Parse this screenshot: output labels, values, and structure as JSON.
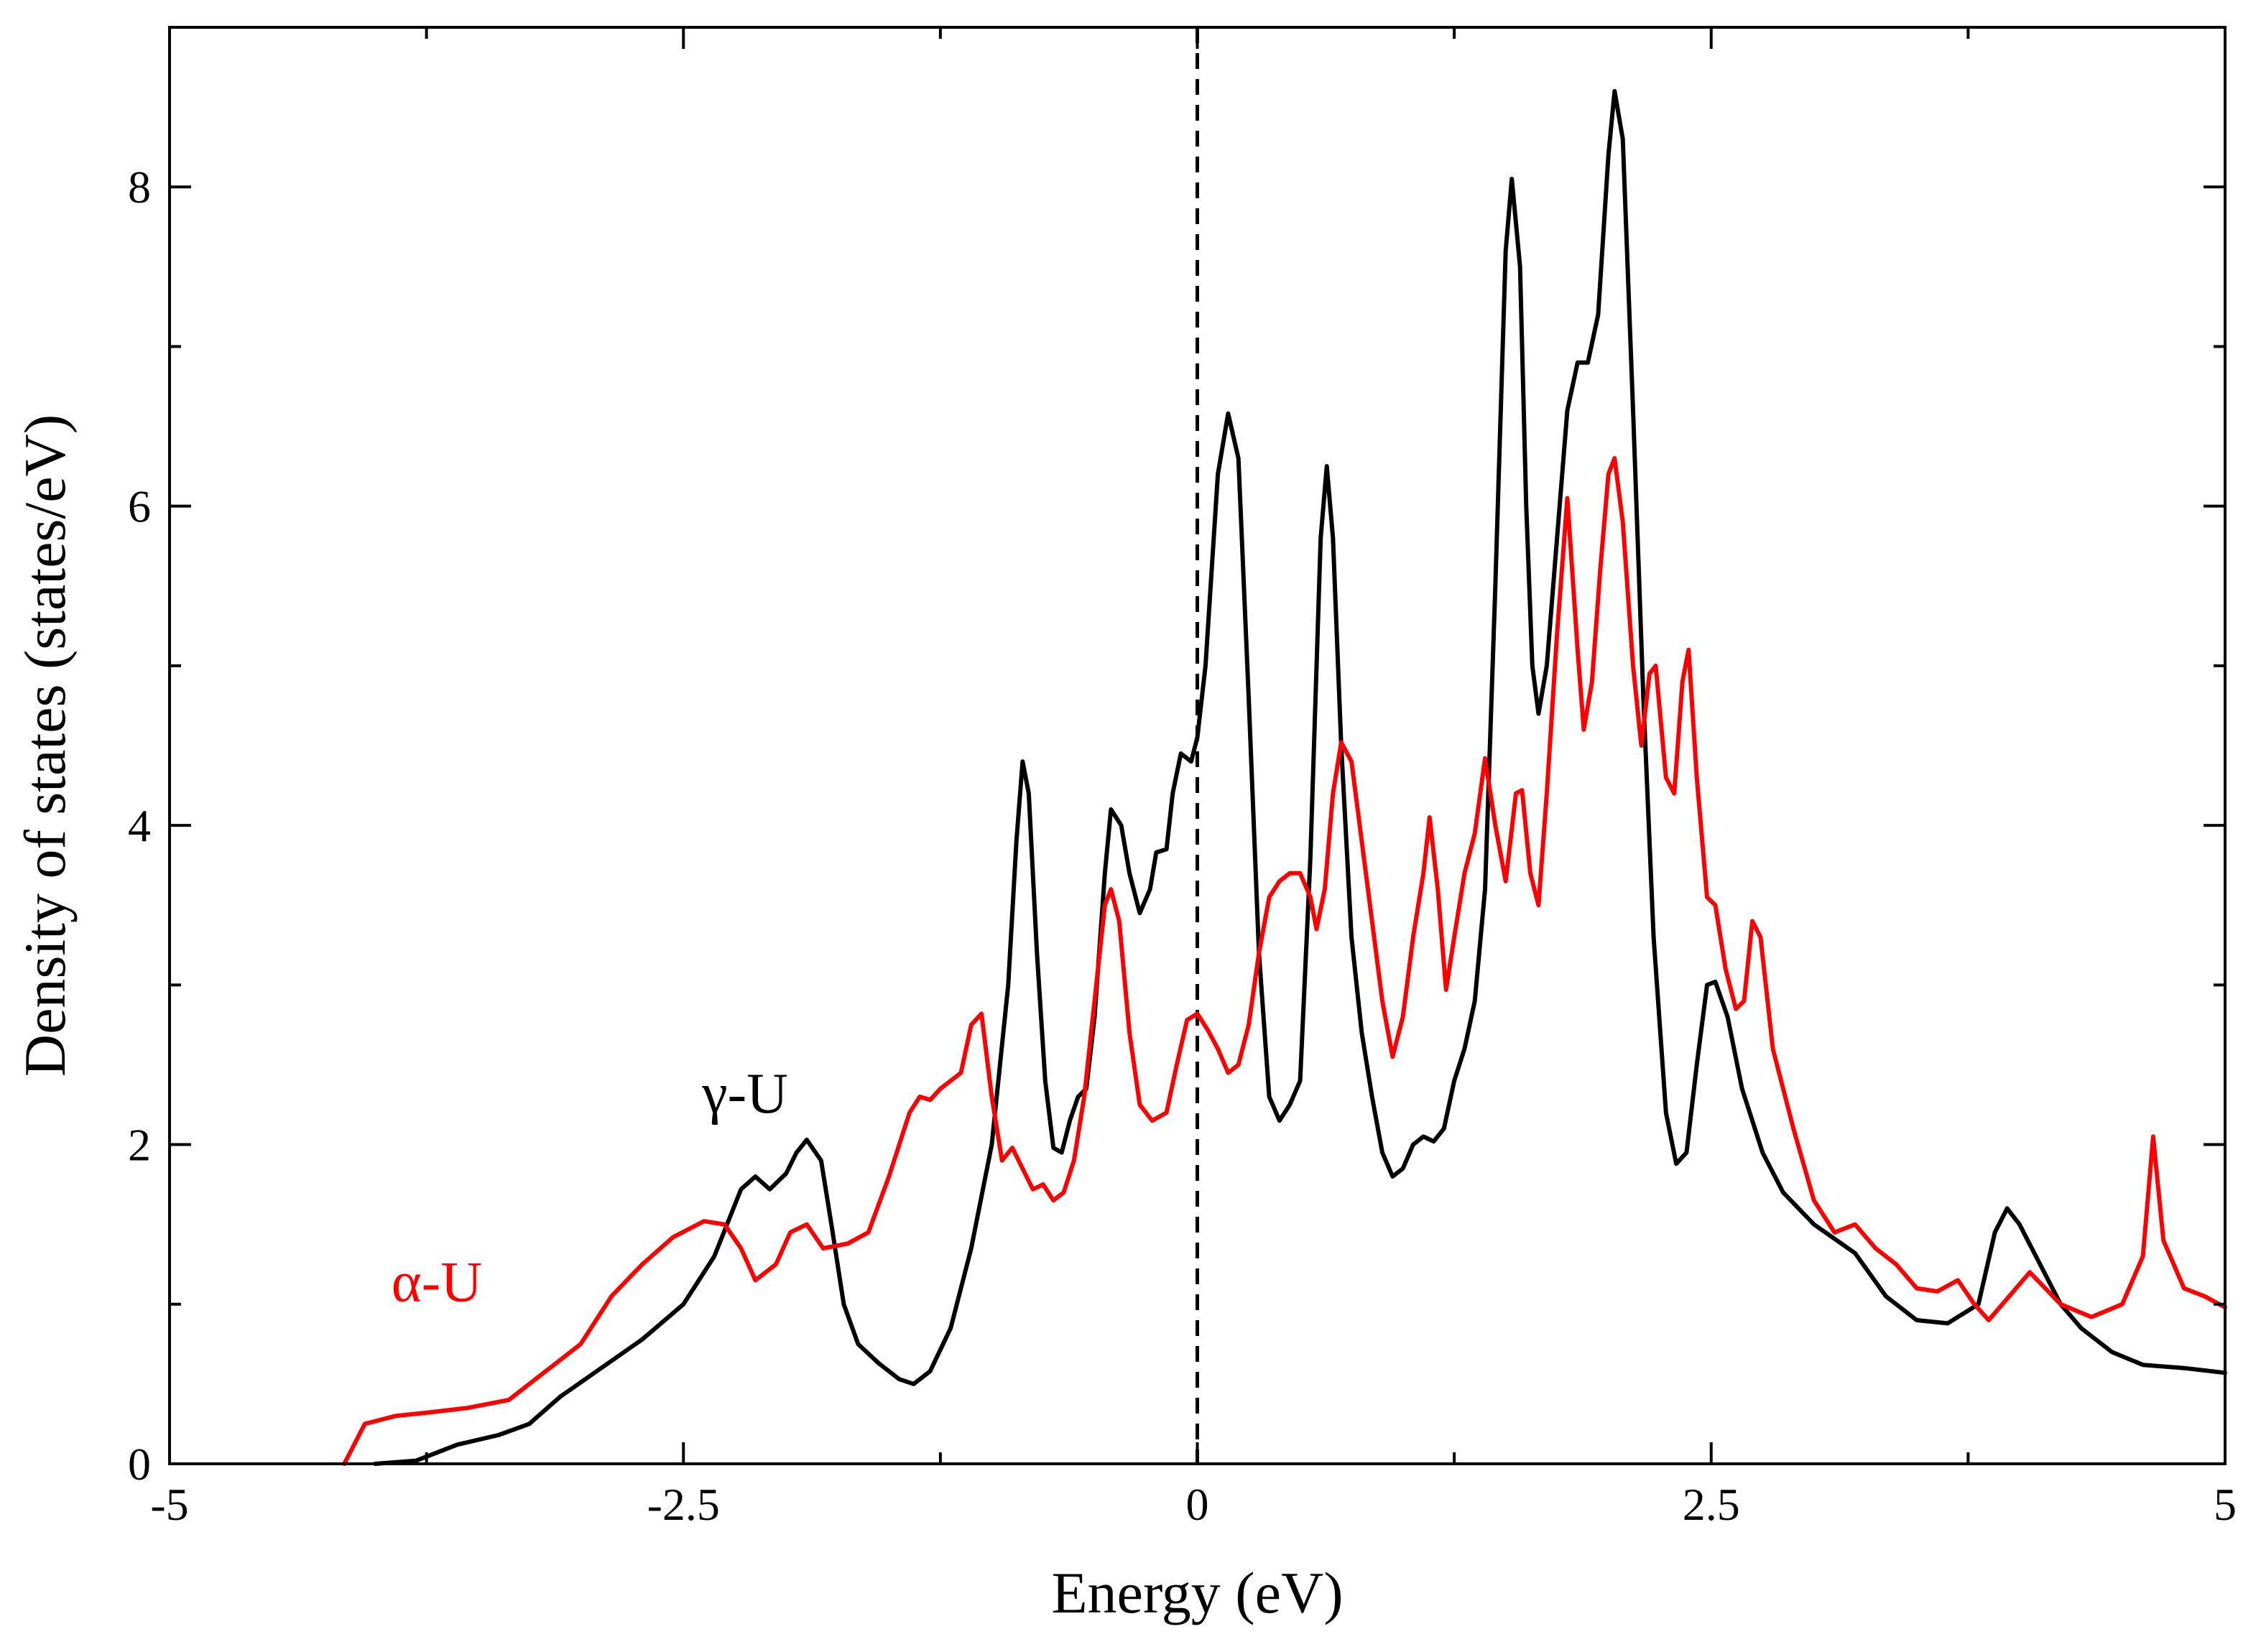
{
  "chart_data": {
    "type": "line",
    "title": "",
    "xlabel": "Energy (eV)",
    "ylabel": "Density of states (states/eV)",
    "xlim": [
      -5,
      5
    ],
    "ylim": [
      0,
      9
    ],
    "x_ticks": [
      -5,
      -2.5,
      0,
      2.5,
      5
    ],
    "x_tick_labels": [
      "-5",
      "-2.5",
      "0",
      "2.5",
      "5"
    ],
    "y_ticks": [
      0,
      2,
      4,
      6,
      8
    ],
    "y_tick_labels": [
      "0",
      "2",
      "4",
      "6",
      "8"
    ],
    "fermi_level": 0,
    "series": [
      {
        "name": "γ-U",
        "color": "#000000",
        "points": [
          [
            -4.0,
            0.0
          ],
          [
            -3.8,
            0.02
          ],
          [
            -3.6,
            0.12
          ],
          [
            -3.4,
            0.18
          ],
          [
            -3.25,
            0.25
          ],
          [
            -3.1,
            0.42
          ],
          [
            -2.9,
            0.6
          ],
          [
            -2.7,
            0.78
          ],
          [
            -2.5,
            1.0
          ],
          [
            -2.35,
            1.3
          ],
          [
            -2.22,
            1.72
          ],
          [
            -2.15,
            1.8
          ],
          [
            -2.08,
            1.72
          ],
          [
            -2.0,
            1.82
          ],
          [
            -1.95,
            1.95
          ],
          [
            -1.9,
            2.03
          ],
          [
            -1.83,
            1.9
          ],
          [
            -1.78,
            1.5
          ],
          [
            -1.72,
            1.0
          ],
          [
            -1.65,
            0.75
          ],
          [
            -1.55,
            0.63
          ],
          [
            -1.45,
            0.53
          ],
          [
            -1.38,
            0.5
          ],
          [
            -1.3,
            0.58
          ],
          [
            -1.2,
            0.85
          ],
          [
            -1.1,
            1.35
          ],
          [
            -1.0,
            2.0
          ],
          [
            -0.92,
            3.0
          ],
          [
            -0.88,
            3.9
          ],
          [
            -0.85,
            4.4
          ],
          [
            -0.82,
            4.2
          ],
          [
            -0.78,
            3.2
          ],
          [
            -0.74,
            2.4
          ],
          [
            -0.7,
            1.98
          ],
          [
            -0.66,
            1.95
          ],
          [
            -0.62,
            2.15
          ],
          [
            -0.58,
            2.3
          ],
          [
            -0.54,
            2.35
          ],
          [
            -0.5,
            2.8
          ],
          [
            -0.45,
            3.7
          ],
          [
            -0.42,
            4.1
          ],
          [
            -0.37,
            4.0
          ],
          [
            -0.33,
            3.7
          ],
          [
            -0.28,
            3.45
          ],
          [
            -0.23,
            3.6
          ],
          [
            -0.2,
            3.83
          ],
          [
            -0.15,
            3.85
          ],
          [
            -0.12,
            4.2
          ],
          [
            -0.08,
            4.45
          ],
          [
            -0.03,
            4.4
          ],
          [
            0.0,
            4.55
          ],
          [
            0.04,
            5.0
          ],
          [
            0.1,
            6.2
          ],
          [
            0.15,
            6.58
          ],
          [
            0.2,
            6.3
          ],
          [
            0.25,
            4.8
          ],
          [
            0.3,
            3.2
          ],
          [
            0.35,
            2.3
          ],
          [
            0.4,
            2.15
          ],
          [
            0.45,
            2.25
          ],
          [
            0.5,
            2.4
          ],
          [
            0.55,
            3.8
          ],
          [
            0.6,
            5.8
          ],
          [
            0.63,
            6.25
          ],
          [
            0.66,
            5.8
          ],
          [
            0.7,
            4.5
          ],
          [
            0.75,
            3.3
          ],
          [
            0.8,
            2.7
          ],
          [
            0.85,
            2.3
          ],
          [
            0.9,
            1.95
          ],
          [
            0.95,
            1.8
          ],
          [
            1.0,
            1.85
          ],
          [
            1.05,
            2.0
          ],
          [
            1.1,
            2.05
          ],
          [
            1.15,
            2.02
          ],
          [
            1.2,
            2.1
          ],
          [
            1.25,
            2.4
          ],
          [
            1.3,
            2.6
          ],
          [
            1.35,
            2.9
          ],
          [
            1.4,
            3.6
          ],
          [
            1.45,
            5.5
          ],
          [
            1.5,
            7.6
          ],
          [
            1.53,
            8.05
          ],
          [
            1.57,
            7.5
          ],
          [
            1.6,
            6.0
          ],
          [
            1.63,
            5.0
          ],
          [
            1.66,
            4.7
          ],
          [
            1.7,
            5.0
          ],
          [
            1.75,
            5.8
          ],
          [
            1.8,
            6.6
          ],
          [
            1.85,
            6.9
          ],
          [
            1.9,
            6.9
          ],
          [
            1.95,
            7.2
          ],
          [
            2.0,
            8.2
          ],
          [
            2.03,
            8.6
          ],
          [
            2.07,
            8.3
          ],
          [
            2.12,
            6.6
          ],
          [
            2.17,
            4.8
          ],
          [
            2.22,
            3.3
          ],
          [
            2.28,
            2.2
          ],
          [
            2.33,
            1.88
          ],
          [
            2.38,
            1.95
          ],
          [
            2.43,
            2.5
          ],
          [
            2.48,
            3.0
          ],
          [
            2.52,
            3.02
          ],
          [
            2.58,
            2.8
          ],
          [
            2.65,
            2.35
          ],
          [
            2.75,
            1.95
          ],
          [
            2.85,
            1.7
          ],
          [
            3.0,
            1.5
          ],
          [
            3.2,
            1.32
          ],
          [
            3.35,
            1.05
          ],
          [
            3.5,
            0.9
          ],
          [
            3.65,
            0.88
          ],
          [
            3.8,
            1.0
          ],
          [
            3.88,
            1.45
          ],
          [
            3.94,
            1.6
          ],
          [
            4.0,
            1.5
          ],
          [
            4.1,
            1.25
          ],
          [
            4.2,
            1.0
          ],
          [
            4.3,
            0.85
          ],
          [
            4.45,
            0.7
          ],
          [
            4.6,
            0.62
          ],
          [
            4.8,
            0.6
          ],
          [
            5.0,
            0.57
          ]
        ]
      },
      {
        "name": "α-U",
        "color": "#ff0000",
        "points": [
          [
            -4.15,
            0.0
          ],
          [
            -4.05,
            0.25
          ],
          [
            -3.9,
            0.3
          ],
          [
            -3.75,
            0.32
          ],
          [
            -3.55,
            0.35
          ],
          [
            -3.35,
            0.4
          ],
          [
            -3.2,
            0.55
          ],
          [
            -3.0,
            0.75
          ],
          [
            -2.85,
            1.05
          ],
          [
            -2.7,
            1.25
          ],
          [
            -2.55,
            1.42
          ],
          [
            -2.4,
            1.52
          ],
          [
            -2.3,
            1.5
          ],
          [
            -2.22,
            1.35
          ],
          [
            -2.15,
            1.15
          ],
          [
            -2.05,
            1.25
          ],
          [
            -1.98,
            1.45
          ],
          [
            -1.9,
            1.5
          ],
          [
            -1.82,
            1.35
          ],
          [
            -1.7,
            1.38
          ],
          [
            -1.6,
            1.45
          ],
          [
            -1.5,
            1.8
          ],
          [
            -1.4,
            2.2
          ],
          [
            -1.35,
            2.3
          ],
          [
            -1.3,
            2.28
          ],
          [
            -1.25,
            2.35
          ],
          [
            -1.2,
            2.4
          ],
          [
            -1.15,
            2.45
          ],
          [
            -1.1,
            2.75
          ],
          [
            -1.05,
            2.82
          ],
          [
            -1.0,
            2.3
          ],
          [
            -0.95,
            1.9
          ],
          [
            -0.9,
            1.98
          ],
          [
            -0.85,
            1.85
          ],
          [
            -0.8,
            1.72
          ],
          [
            -0.75,
            1.75
          ],
          [
            -0.7,
            1.65
          ],
          [
            -0.65,
            1.7
          ],
          [
            -0.6,
            1.9
          ],
          [
            -0.55,
            2.3
          ],
          [
            -0.5,
            2.9
          ],
          [
            -0.45,
            3.5
          ],
          [
            -0.42,
            3.6
          ],
          [
            -0.38,
            3.4
          ],
          [
            -0.33,
            2.7
          ],
          [
            -0.28,
            2.25
          ],
          [
            -0.22,
            2.15
          ],
          [
            -0.15,
            2.2
          ],
          [
            -0.1,
            2.5
          ],
          [
            -0.05,
            2.78
          ],
          [
            0.0,
            2.82
          ],
          [
            0.05,
            2.72
          ],
          [
            0.1,
            2.6
          ],
          [
            0.15,
            2.45
          ],
          [
            0.2,
            2.5
          ],
          [
            0.25,
            2.75
          ],
          [
            0.3,
            3.2
          ],
          [
            0.35,
            3.55
          ],
          [
            0.4,
            3.65
          ],
          [
            0.45,
            3.7
          ],
          [
            0.5,
            3.7
          ],
          [
            0.55,
            3.55
          ],
          [
            0.58,
            3.35
          ],
          [
            0.62,
            3.6
          ],
          [
            0.66,
            4.2
          ],
          [
            0.7,
            4.52
          ],
          [
            0.75,
            4.4
          ],
          [
            0.8,
            3.9
          ],
          [
            0.85,
            3.4
          ],
          [
            0.9,
            2.9
          ],
          [
            0.95,
            2.55
          ],
          [
            1.0,
            2.8
          ],
          [
            1.05,
            3.3
          ],
          [
            1.1,
            3.7
          ],
          [
            1.13,
            4.05
          ],
          [
            1.17,
            3.6
          ],
          [
            1.21,
            2.97
          ],
          [
            1.25,
            3.3
          ],
          [
            1.3,
            3.7
          ],
          [
            1.35,
            3.95
          ],
          [
            1.4,
            4.42
          ],
          [
            1.45,
            4.0
          ],
          [
            1.5,
            3.65
          ],
          [
            1.55,
            4.2
          ],
          [
            1.58,
            4.22
          ],
          [
            1.62,
            3.7
          ],
          [
            1.66,
            3.5
          ],
          [
            1.7,
            4.2
          ],
          [
            1.75,
            5.2
          ],
          [
            1.8,
            6.05
          ],
          [
            1.85,
            5.1
          ],
          [
            1.88,
            4.6
          ],
          [
            1.92,
            4.9
          ],
          [
            1.96,
            5.6
          ],
          [
            2.0,
            6.2
          ],
          [
            2.03,
            6.3
          ],
          [
            2.07,
            5.9
          ],
          [
            2.12,
            5.0
          ],
          [
            2.16,
            4.5
          ],
          [
            2.2,
            4.95
          ],
          [
            2.23,
            5.0
          ],
          [
            2.28,
            4.3
          ],
          [
            2.32,
            4.2
          ],
          [
            2.36,
            4.9
          ],
          [
            2.39,
            5.1
          ],
          [
            2.43,
            4.3
          ],
          [
            2.48,
            3.55
          ],
          [
            2.52,
            3.5
          ],
          [
            2.57,
            3.1
          ],
          [
            2.62,
            2.85
          ],
          [
            2.66,
            2.9
          ],
          [
            2.7,
            3.4
          ],
          [
            2.74,
            3.3
          ],
          [
            2.8,
            2.6
          ],
          [
            2.9,
            2.1
          ],
          [
            3.0,
            1.65
          ],
          [
            3.1,
            1.45
          ],
          [
            3.2,
            1.5
          ],
          [
            3.3,
            1.35
          ],
          [
            3.4,
            1.25
          ],
          [
            3.5,
            1.1
          ],
          [
            3.6,
            1.08
          ],
          [
            3.7,
            1.15
          ],
          [
            3.78,
            1.0
          ],
          [
            3.85,
            0.9
          ],
          [
            3.95,
            1.05
          ],
          [
            4.05,
            1.2
          ],
          [
            4.2,
            1.0
          ],
          [
            4.35,
            0.92
          ],
          [
            4.5,
            1.0
          ],
          [
            4.6,
            1.3
          ],
          [
            4.65,
            2.05
          ],
          [
            4.7,
            1.4
          ],
          [
            4.8,
            1.1
          ],
          [
            4.9,
            1.05
          ],
          [
            5.0,
            0.98
          ]
        ]
      }
    ],
    "annotations": [
      {
        "text": "γ-U",
        "x": -2.2,
        "y": 2.2,
        "color": "#000000"
      },
      {
        "text": "α-U",
        "x": -3.7,
        "y": 1.02,
        "color": "#ff0000"
      }
    ]
  }
}
